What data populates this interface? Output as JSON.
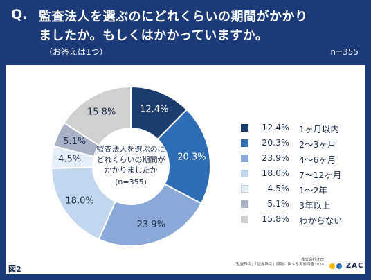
{
  "question": {
    "mark": "Q.",
    "line1": "監査法人を選ぶのにどれくらいの期間がかかり",
    "line2": "ましたか。もしくはかかっていますか。",
    "note": "（お答えは1つ）",
    "n": "n=355"
  },
  "center": {
    "line1": "監査法人を選ぶのに",
    "line2": "どれくらいの期間が",
    "line3": "かかりましたか",
    "line4": "(n=355)"
  },
  "chart_data": {
    "type": "pie",
    "donut": true,
    "n": 355,
    "slices": [
      {
        "label": "1ヶ月以内",
        "value": 12.4,
        "display": "12.4%",
        "color": "#1b3d6e",
        "text_color": "#ffffff"
      },
      {
        "label": "2～3ヶ月",
        "value": 20.3,
        "display": "20.3%",
        "color": "#2e6db4",
        "text_color": "#ffffff"
      },
      {
        "label": "4～6ヶ月",
        "value": 23.9,
        "display": "23.9%",
        "color": "#8aa9d8",
        "text_color": "#1f2f4f"
      },
      {
        "label": "7～12ヶ月",
        "value": 18.0,
        "display": "18.0%",
        "color": "#c3d6ee",
        "text_color": "#1f2f4f"
      },
      {
        "label": "1～2年",
        "value": 4.5,
        "display": "4.5%",
        "color": "#e4edf8",
        "text_color": "#1f2f4f"
      },
      {
        "label": "3年以上",
        "value": 5.1,
        "display": "5.1%",
        "color": "#a8b2c4",
        "text_color": "#1f2f4f"
      },
      {
        "label": "わからない",
        "value": 15.8,
        "display": "15.8%",
        "color": "#d0d0d0",
        "text_color": "#1f2f4f"
      }
    ]
  },
  "footer": {
    "fig": "図2",
    "company": "株式会社オロ",
    "source": "「監査難民」「証券難民」問題に関する実態調査2024",
    "brand": "ZAC",
    "brand_colors": [
      "#f2b705",
      "#2e6db4"
    ]
  }
}
